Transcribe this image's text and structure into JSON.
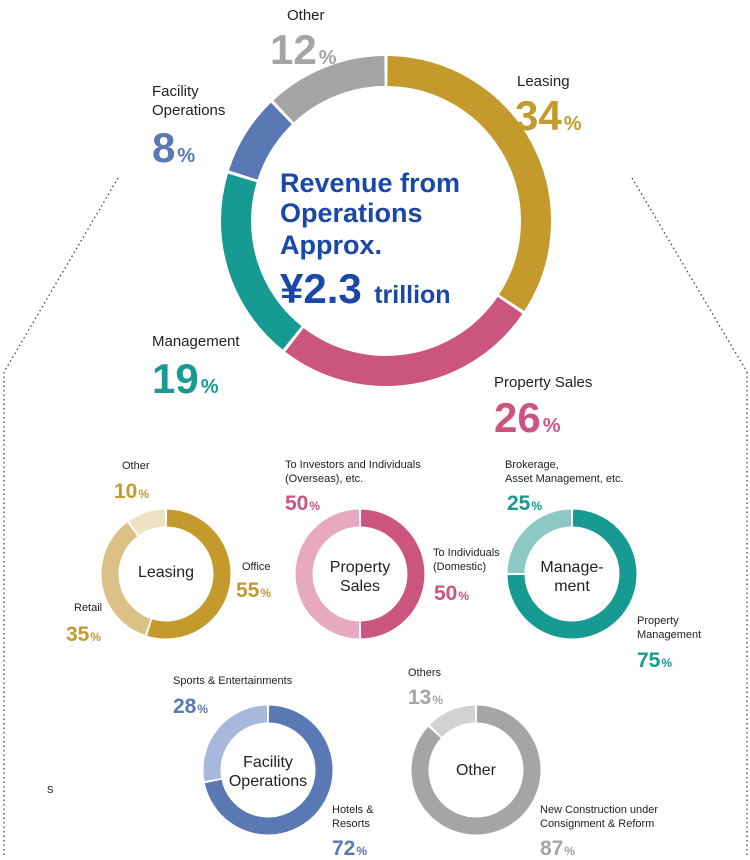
{
  "colors": {
    "leasing": "#C49A2C",
    "property_sales": "#CC5580",
    "management": "#179A92",
    "facility": "#5A78B4",
    "other": "#A5A5A8",
    "center_text": "#1948A8",
    "leasing_light_retail": "#DCC186",
    "leasing_light_other": "#EEE2C5",
    "sales_light": "#E7A9C0",
    "mgmt_light": "#8CC9C5",
    "facility_light": "#A8B8DC",
    "other_light": "#D2D2D4"
  },
  "center": {
    "line1": "Revenue from",
    "line2": "Operations",
    "line3": "Approx.",
    "amount": "¥2.3",
    "unit": "trillion"
  },
  "percent_symbol": "%",
  "chart_data": [
    {
      "type": "pie",
      "title": "Revenue from Operations Approx. ¥2.3 trillion",
      "donut": true,
      "slices": [
        {
          "label": "Leasing",
          "value": 34,
          "color": "#C49A2C"
        },
        {
          "label": "Property Sales",
          "value": 26,
          "color": "#CC5580"
        },
        {
          "label": "Management",
          "value": 19,
          "color": "#179A92"
        },
        {
          "label": "Facility Operations",
          "value": 8,
          "color": "#5A78B4"
        },
        {
          "label": "Other",
          "value": 12,
          "color": "#A5A5A8"
        }
      ]
    },
    {
      "type": "pie",
      "title": "Leasing",
      "donut": true,
      "slices": [
        {
          "label": "Office",
          "value": 55,
          "color": "#C49A2C"
        },
        {
          "label": "Retail",
          "value": 35,
          "color": "#DCC186"
        },
        {
          "label": "Other",
          "value": 10,
          "color": "#EEE2C5"
        }
      ]
    },
    {
      "type": "pie",
      "title": "Property Sales",
      "donut": true,
      "slices": [
        {
          "label": "To Individuals (Domestic)",
          "value": 50,
          "color": "#CC5580"
        },
        {
          "label": "To Investors and Individuals (Overseas), etc.",
          "value": 50,
          "color": "#E7A9C0"
        }
      ]
    },
    {
      "type": "pie",
      "title": "Manage- ment",
      "donut": true,
      "slices": [
        {
          "label": "Property Management",
          "value": 75,
          "color": "#179A92"
        },
        {
          "label": "Brokerage, Asset Management, etc.",
          "value": 25,
          "color": "#8CC9C5"
        }
      ]
    },
    {
      "type": "pie",
      "title": "Facility Operations",
      "donut": true,
      "slices": [
        {
          "label": "Hotels & Resorts",
          "value": 72,
          "color": "#5A78B4"
        },
        {
          "label": "Sports & Entertainments",
          "value": 28,
          "color": "#A8B8DC"
        }
      ]
    },
    {
      "type": "pie",
      "title": "Other",
      "donut": true,
      "slices": [
        {
          "label": "New Construction under Consignment & Reform",
          "value": 87,
          "color": "#A5A5A8"
        },
        {
          "label": "Others",
          "value": 13,
          "color": "#D2D2D4"
        }
      ]
    }
  ],
  "sub_titles": {
    "leasing": "Leasing",
    "sales_1": "Property",
    "sales_2": "Sales",
    "mgmt_1": "Manage-",
    "mgmt_2": "ment",
    "facility_1": "Facility",
    "facility_2": "Operations",
    "other": "Other"
  },
  "sub_labels": {
    "leasing_office": "Office",
    "leasing_retail": "Retail",
    "leasing_other": "Other",
    "sales_domestic_1": "To Individuals",
    "sales_domestic_2": "(Domestic)",
    "sales_overseas_1": "To Investors and Individuals",
    "sales_overseas_2": "(Overseas), etc.",
    "mgmt_pm_1": "Property",
    "mgmt_pm_2": "Management",
    "mgmt_brk_1": "Brokerage,",
    "mgmt_brk_2": "Asset Management, etc.",
    "fac_sports": "Sports & Entertainments",
    "fac_hotels_1": "Hotels &",
    "fac_hotels_2": "Resorts",
    "oth_others": "Others",
    "oth_new_1": "New Construction under",
    "oth_new_2": "Consignment & Reform"
  },
  "main_labels": {
    "facility_1": "Facility",
    "facility_2": "Operations"
  },
  "stray_glyph": "s"
}
